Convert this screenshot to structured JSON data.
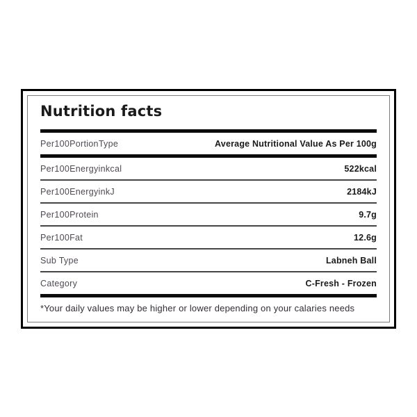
{
  "card": {
    "title": "Nutrition facts",
    "rows": [
      {
        "label": "Per100PortionType",
        "value": "Average Nutritional Value As Per 100g"
      },
      {
        "label": "Per100Energyinkcal",
        "value": "522kcal"
      },
      {
        "label": "Per100EnergyinkJ",
        "value": "2184kJ"
      },
      {
        "label": "Per100Protein",
        "value": "9.7g"
      },
      {
        "label": "Per100Fat",
        "value": "12.6g"
      },
      {
        "label": "Sub Type",
        "value": "Labneh Ball"
      },
      {
        "label": "Category",
        "value": "C-Fresh - Frozen"
      }
    ],
    "footnote": "*Your daily values may be higher or lower depending on your calaries needs"
  },
  "colors": {
    "ink": "#1a1a1a",
    "label": "#4f4a52",
    "bar": "#0b0b0b",
    "thin-line": "#454545",
    "outer-border": "#000000",
    "inner-border": "#7d7d7d",
    "bg": "#ffffff"
  }
}
